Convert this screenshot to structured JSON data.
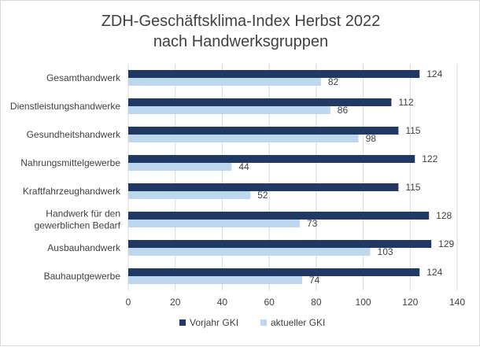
{
  "chart_data": {
    "type": "bar",
    "orientation": "horizontal",
    "title_lines": [
      "ZDH-Geschäftsklima-Index Herbst 2022",
      "nach Handwerksgruppen"
    ],
    "categories": [
      [
        "Gesamthandwerk"
      ],
      [
        "Dienstleistungshandwerke"
      ],
      [
        "Gesundheitshandwerk"
      ],
      [
        "Nahrungsmittelgewerbe"
      ],
      [
        "Kraftfahrzeughandwerk"
      ],
      [
        "Handwerk für den",
        "gewerblichen Bedarf"
      ],
      [
        "Ausbauhandwerk"
      ],
      [
        "Bauhauptgewerbe"
      ]
    ],
    "series": [
      {
        "name": "Vorjahr GKI",
        "color": "#1f3864",
        "values": [
          124,
          112,
          115,
          122,
          115,
          128,
          129,
          124
        ]
      },
      {
        "name": "aktueller GKI",
        "color": "#bdd7ee",
        "values": [
          82,
          86,
          98,
          44,
          52,
          73,
          103,
          74
        ]
      }
    ],
    "xlim": [
      0,
      140
    ],
    "xticks": [
      0,
      20,
      40,
      60,
      80,
      100,
      120,
      140
    ],
    "grid": true,
    "legend_position": "bottom",
    "data_labels": true
  }
}
